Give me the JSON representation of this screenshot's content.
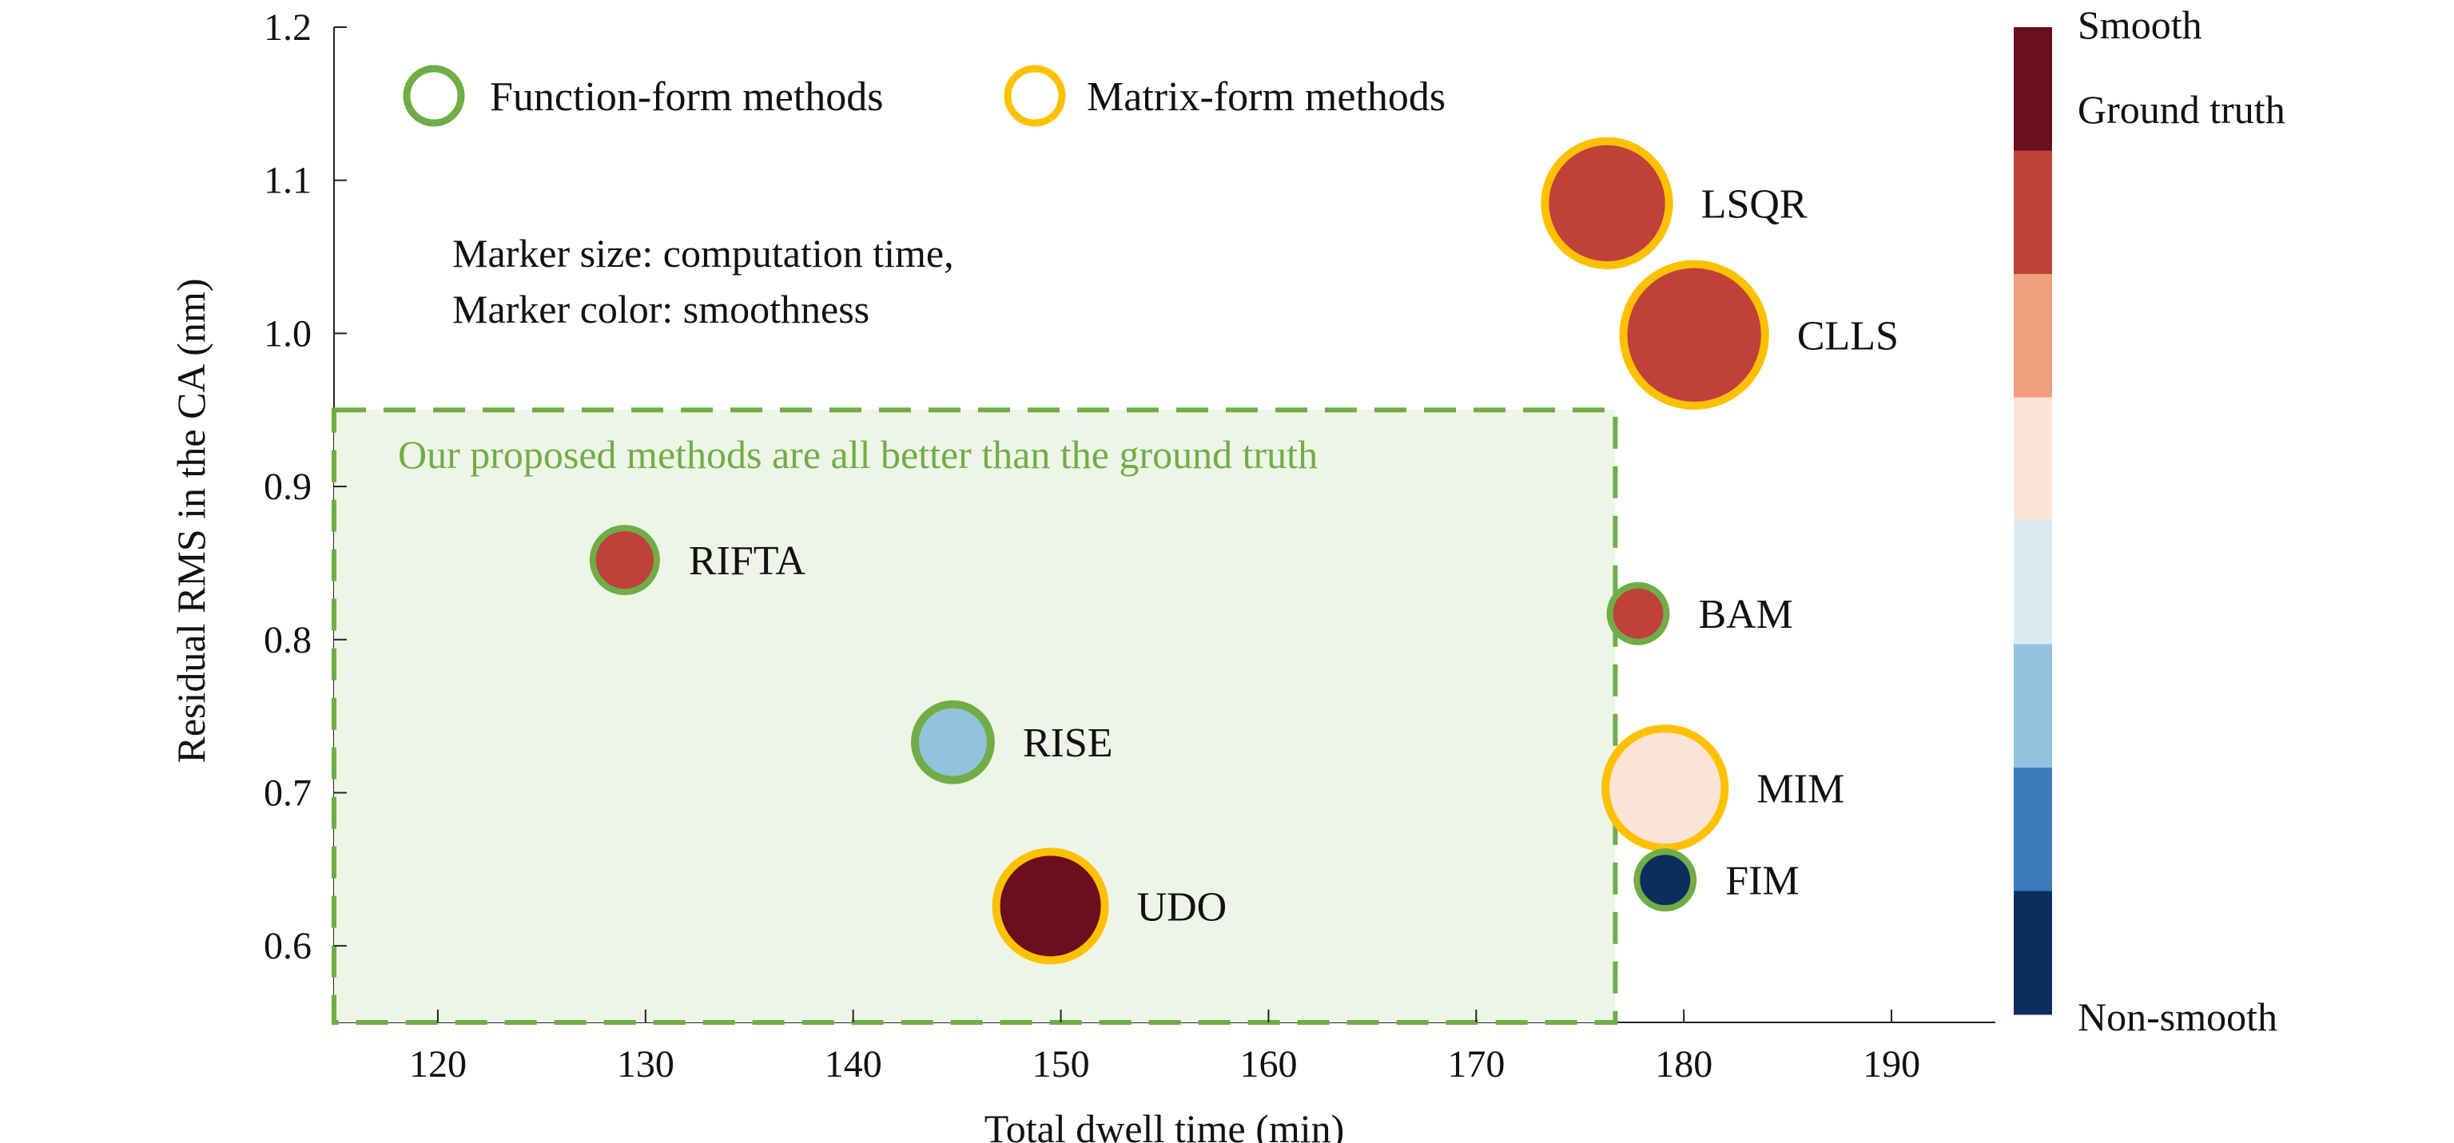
{
  "chart_data": {
    "type": "scatter",
    "xlabel": "Total dwell time (min)",
    "ylabel": "Residual RMS in the CA (nm)",
    "xlim": [
      115,
      195
    ],
    "ylim": [
      0.55,
      1.2
    ],
    "x_ticks": [
      120,
      130,
      140,
      150,
      160,
      170,
      180,
      190
    ],
    "x_tick_labels": [
      "120",
      "130",
      "140",
      "150",
      "160",
      "170",
      "180",
      "190"
    ],
    "y_ticks": [
      0.6,
      0.7,
      0.8,
      0.9,
      1.0,
      1.1,
      1.2
    ],
    "y_tick_labels": [
      "0.6",
      "0.7",
      "0.8",
      "0.9",
      "1.0",
      "1.1",
      "1.2"
    ],
    "grid": false,
    "legend_position": "top-left",
    "legend": [
      {
        "label": "Function-form methods",
        "color": "#70AD47"
      },
      {
        "label": "Matrix-form methods",
        "color": "#FFC000"
      }
    ],
    "note_lines": [
      "Marker size: computation time,",
      "Marker color: smoothness"
    ],
    "region": {
      "x": [
        115,
        176.7
      ],
      "y": [
        0.55,
        0.95
      ],
      "label": "Our proposed methods are all better than the ground truth",
      "edge_color": "#70AD47",
      "fill_color": "#EEF4E6"
    },
    "points": [
      {
        "label": "RIFTA",
        "x": 129.0,
        "y": 0.852,
        "group": "Function-form methods",
        "edge": "#70AD47",
        "fill": "#C0403A",
        "size": 1
      },
      {
        "label": "RISE",
        "x": 144.8,
        "y": 0.733,
        "group": "Function-form methods",
        "edge": "#70AD47",
        "fill": "#91C3DF",
        "size": 1.6
      },
      {
        "label": "UDO",
        "x": 149.5,
        "y": 0.626,
        "group": "Matrix-form methods",
        "edge": "#FFC000",
        "fill": "#6B0E1E",
        "size": 4
      },
      {
        "label": "LSQR",
        "x": 176.3,
        "y": 1.085,
        "group": "Matrix-form methods",
        "edge": "#FFC000",
        "fill": "#C0403A",
        "size": 5.5
      },
      {
        "label": "CLLS",
        "x": 180.5,
        "y": 0.999,
        "group": "Matrix-form methods",
        "edge": "#FFC000",
        "fill": "#C0403A",
        "size": 7.5
      },
      {
        "label": "BAM",
        "x": 177.8,
        "y": 0.817,
        "group": "Function-form methods",
        "edge": "#70AD47",
        "fill": "#C0403A",
        "size": 0.7
      },
      {
        "label": "MIM",
        "x": 179.1,
        "y": 0.703,
        "group": "Matrix-form methods",
        "edge": "#FFC000",
        "fill": "#FBE3D6",
        "size": 5
      },
      {
        "label": "FIM",
        "x": 179.1,
        "y": 0.643,
        "group": "Function-form methods",
        "edge": "#70AD47",
        "fill": "#0A2F5E",
        "size": 0.7
      }
    ],
    "colorbar": {
      "top_label": "Smooth",
      "second_label": "Ground truth",
      "bottom_label": "Non-smooth",
      "colors_top_to_bottom": [
        "#6B0E1E",
        "#C0403A",
        "#F1A07E",
        "#FBE3D6",
        "#DCE9F1",
        "#91C3DF",
        "#3B7CB8",
        "#0A2F5E"
      ]
    }
  }
}
